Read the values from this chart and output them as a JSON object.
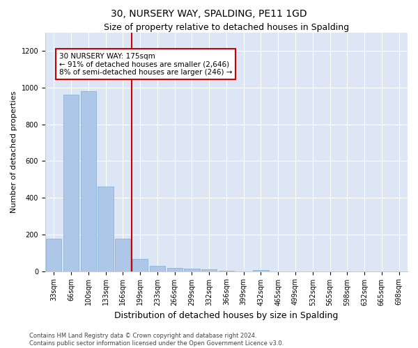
{
  "title1": "30, NURSERY WAY, SPALDING, PE11 1GD",
  "title2": "Size of property relative to detached houses in Spalding",
  "xlabel": "Distribution of detached houses by size in Spalding",
  "ylabel": "Number of detached properties",
  "categories": [
    "33sqm",
    "66sqm",
    "100sqm",
    "133sqm",
    "166sqm",
    "199sqm",
    "233sqm",
    "266sqm",
    "299sqm",
    "332sqm",
    "366sqm",
    "399sqm",
    "432sqm",
    "465sqm",
    "499sqm",
    "532sqm",
    "565sqm",
    "598sqm",
    "632sqm",
    "665sqm",
    "698sqm"
  ],
  "values": [
    175,
    962,
    980,
    462,
    175,
    65,
    30,
    18,
    12,
    8,
    1,
    0,
    5,
    0,
    0,
    0,
    0,
    0,
    0,
    0,
    0
  ],
  "bar_color": "#aec6e8",
  "bar_edge_color": "#7aadd4",
  "vline_x": 4.5,
  "vline_color": "#cc0000",
  "annotation_text": "30 NURSERY WAY: 175sqm\n← 91% of detached houses are smaller (2,646)\n8% of semi-detached houses are larger (246) →",
  "annotation_box_color": "#cc0000",
  "ylim": [
    0,
    1300
  ],
  "yticks": [
    0,
    200,
    400,
    600,
    800,
    1000,
    1200
  ],
  "footer": "Contains HM Land Registry data © Crown copyright and database right 2024.\nContains public sector information licensed under the Open Government Licence v3.0.",
  "fig_bg_color": "#ffffff",
  "plot_bg_color": "#dce6f5",
  "title1_fontsize": 10,
  "title2_fontsize": 9,
  "ylabel_fontsize": 8,
  "xlabel_fontsize": 9,
  "tick_fontsize": 7,
  "footer_fontsize": 6,
  "ann_fontsize": 7.5
}
